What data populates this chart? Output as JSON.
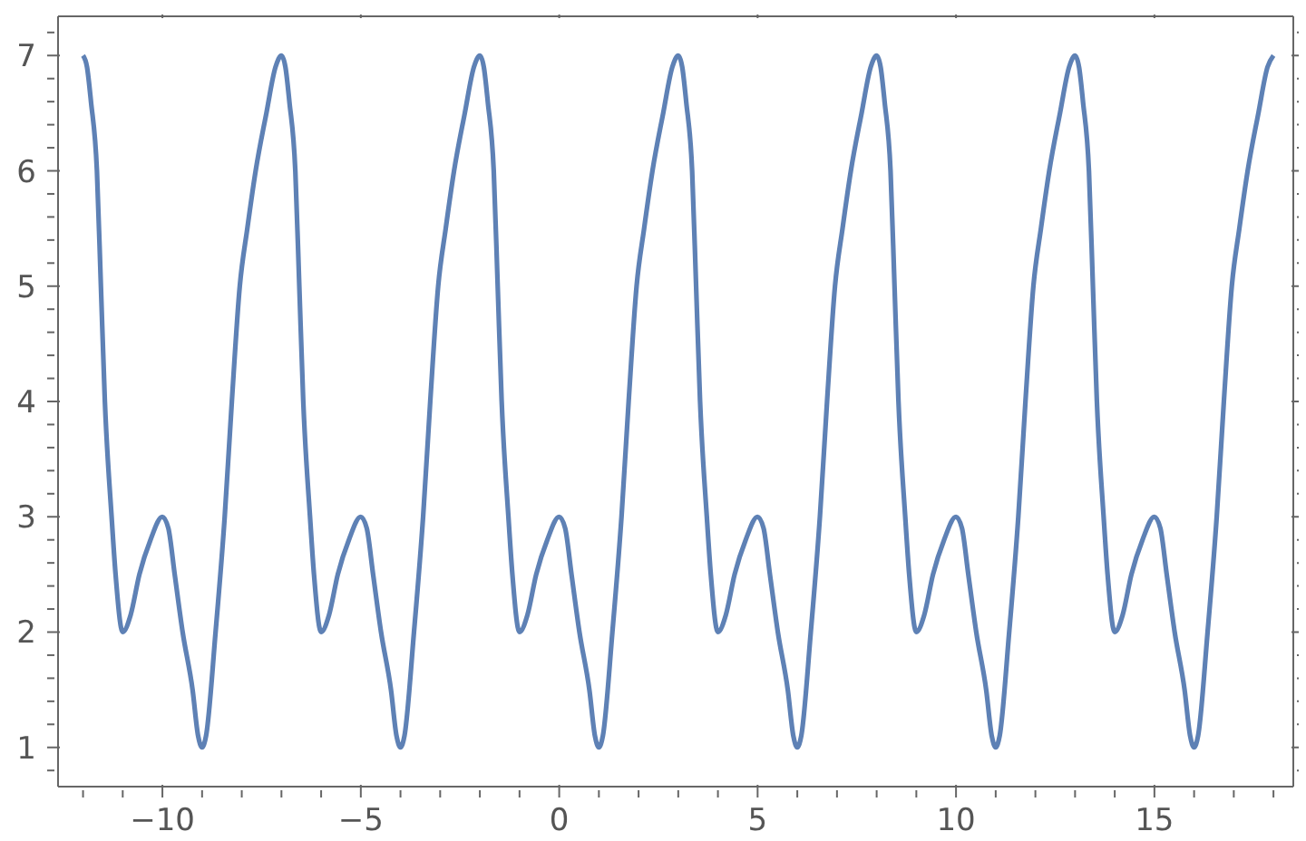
{
  "chart_data": {
    "type": "line",
    "xlim": [
      -12.63,
      18.5
    ],
    "ylim": [
      0.66,
      7.34
    ],
    "xticks": [
      {
        "value": -12,
        "label": null
      },
      {
        "value": -11,
        "label": null
      },
      {
        "value": -10,
        "label": "−10"
      },
      {
        "value": -9,
        "label": null
      },
      {
        "value": -8,
        "label": null
      },
      {
        "value": -7,
        "label": null
      },
      {
        "value": -6,
        "label": null
      },
      {
        "value": -5,
        "label": "−5"
      },
      {
        "value": -4,
        "label": null
      },
      {
        "value": -3,
        "label": null
      },
      {
        "value": -2,
        "label": null
      },
      {
        "value": -1,
        "label": null
      },
      0,
      {
        "value": 1,
        "label": null
      },
      {
        "value": 2,
        "label": null
      },
      {
        "value": 3,
        "label": null
      },
      {
        "value": 4,
        "label": null
      },
      5,
      {
        "value": 6,
        "label": null
      },
      {
        "value": 7,
        "label": null
      },
      {
        "value": 8,
        "label": null
      },
      {
        "value": 9,
        "label": null
      },
      10,
      {
        "value": 11,
        "label": null
      },
      {
        "value": 12,
        "label": null
      },
      {
        "value": 13,
        "label": null
      },
      {
        "value": 14,
        "label": null
      },
      15,
      {
        "value": 16,
        "label": null
      },
      {
        "value": 17,
        "label": null
      },
      {
        "value": 18,
        "label": null
      }
    ],
    "yticks": [
      {
        "value": 0.8,
        "label": null
      },
      1,
      {
        "value": 1.2,
        "label": null
      },
      {
        "value": 1.4,
        "label": null
      },
      {
        "value": 1.6,
        "label": null
      },
      {
        "value": 1.8,
        "label": null
      },
      2,
      {
        "value": 2.2,
        "label": null
      },
      {
        "value": 2.4,
        "label": null
      },
      {
        "value": 2.6,
        "label": null
      },
      {
        "value": 2.8,
        "label": null
      },
      3,
      {
        "value": 3.2,
        "label": null
      },
      {
        "value": 3.4,
        "label": null
      },
      {
        "value": 3.6,
        "label": null
      },
      {
        "value": 3.8,
        "label": null
      },
      4,
      {
        "value": 4.2,
        "label": null
      },
      {
        "value": 4.4,
        "label": null
      },
      {
        "value": 4.6,
        "label": null
      },
      {
        "value": 4.8,
        "label": null
      },
      5,
      {
        "value": 5.2,
        "label": null
      },
      {
        "value": 5.4,
        "label": null
      },
      {
        "value": 5.6,
        "label": null
      },
      {
        "value": 5.8,
        "label": null
      },
      6,
      {
        "value": 6.2,
        "label": null
      },
      {
        "value": 6.4,
        "label": null
      },
      {
        "value": 6.6,
        "label": null
      },
      {
        "value": 6.8,
        "label": null
      },
      7,
      {
        "value": 7.2,
        "label": null
      }
    ],
    "grid": false,
    "marker": "none",
    "line_style": "solid",
    "series": [
      {
        "color": "#5e81b5",
        "x": [
          -12,
          -11.9,
          -11.8,
          -11.65,
          -11.55,
          -11.45,
          -11.28,
          -11.18,
          -11,
          -10.8,
          -10.58,
          -10.3,
          -10,
          -9.85,
          -9.69,
          -9.49,
          -9.24,
          -9.1,
          -9,
          -8.9,
          -8.66,
          -8.43,
          -8.25,
          -8.05,
          -7.86,
          -7.65,
          -7.38,
          -7.15,
          -7,
          -6.9,
          -6.8,
          -6.65,
          -6.55,
          -6.45,
          -6.28,
          -6.18,
          -6,
          -5.8,
          -5.58,
          -5.3,
          -5,
          -4.85,
          -4.69,
          -4.49,
          -4.24,
          -4.1,
          -4,
          -3.9,
          -3.66,
          -3.43,
          -3.25,
          -3.05,
          -2.86,
          -2.65,
          -2.38,
          -2.15,
          -2,
          -1.9,
          -1.8,
          -1.65,
          -1.55,
          -1.45,
          -1.28,
          -1.18,
          -1,
          -0.8,
          -0.58,
          -0.3,
          0,
          0.15,
          0.31,
          0.51,
          0.76,
          0.9,
          1,
          1.1,
          1.34,
          1.57,
          1.75,
          1.95,
          2.14,
          2.35,
          2.62,
          2.85,
          3,
          3.1,
          3.2,
          3.35,
          3.45,
          3.55,
          3.72,
          3.82,
          4,
          4.2,
          4.42,
          4.7,
          5,
          5.15,
          5.31,
          5.51,
          5.76,
          5.9,
          6,
          6.1,
          6.34,
          6.57,
          6.75,
          6.95,
          7.14,
          7.35,
          7.62,
          7.85,
          8,
          8.1,
          8.2,
          8.35,
          8.45,
          8.55,
          8.72,
          8.82,
          9,
          9.2,
          9.42,
          9.7,
          10,
          10.15,
          10.31,
          10.51,
          10.76,
          10.9,
          11,
          11.1,
          11.34,
          11.57,
          11.75,
          11.95,
          12.14,
          12.35,
          12.62,
          12.85,
          13,
          13.1,
          13.2,
          13.35,
          13.45,
          13.55,
          13.72,
          13.82,
          14,
          14.2,
          14.42,
          14.7,
          15,
          15.15,
          15.31,
          15.51,
          15.76,
          15.9,
          16,
          16.1,
          16.34,
          16.57,
          16.75,
          16.95,
          17.14,
          17.35,
          17.62,
          17.85,
          18
        ],
        "values": [
          7,
          6.9,
          6.6,
          6,
          5,
          4,
          3,
          2.5,
          2,
          2.15,
          2.5,
          2.8,
          3,
          2.9,
          2.5,
          2,
          1.5,
          1.1,
          1,
          1.1,
          2,
          3,
          4,
          5,
          5.5,
          6,
          6.5,
          6.9,
          7,
          6.9,
          6.6,
          6,
          5,
          4,
          3,
          2.5,
          2,
          2.15,
          2.5,
          2.8,
          3,
          2.9,
          2.5,
          2,
          1.5,
          1.1,
          1,
          1.1,
          2,
          3,
          4,
          5,
          5.5,
          6,
          6.5,
          6.9,
          7,
          6.9,
          6.6,
          6,
          5,
          4,
          3,
          2.5,
          2,
          2.15,
          2.5,
          2.8,
          3,
          2.9,
          2.5,
          2,
          1.5,
          1.1,
          1,
          1.1,
          2,
          3,
          4,
          5,
          5.5,
          6,
          6.5,
          6.9,
          7,
          6.9,
          6.6,
          6,
          5,
          4,
          3,
          2.5,
          2,
          2.15,
          2.5,
          2.8,
          3,
          2.9,
          2.5,
          2,
          1.5,
          1.1,
          1,
          1.1,
          2,
          3,
          4,
          5,
          5.5,
          6,
          6.5,
          6.9,
          7,
          6.9,
          6.6,
          6,
          5,
          4,
          3,
          2.5,
          2,
          2.15,
          2.5,
          2.8,
          3,
          2.9,
          2.5,
          2,
          1.5,
          1.1,
          1,
          1.1,
          2,
          3,
          4,
          5,
          5.5,
          6,
          6.5,
          6.9,
          7,
          6.9,
          6.6,
          6,
          5,
          4,
          3,
          2.5,
          2,
          2.15,
          2.5,
          2.8,
          3,
          2.9,
          2.5,
          2,
          1.5,
          1.1,
          1,
          1.1,
          2,
          3,
          4,
          5,
          5.5,
          6,
          6.5,
          6.9,
          7
        ]
      }
    ]
  }
}
